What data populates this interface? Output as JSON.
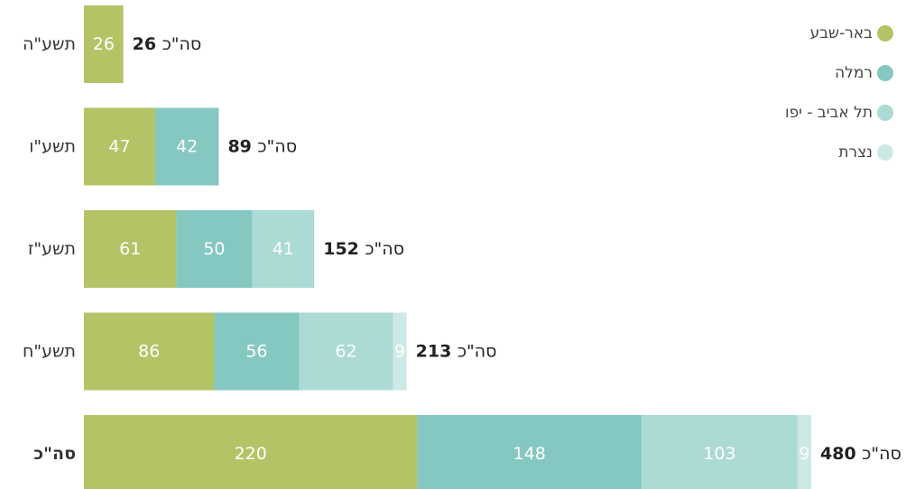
{
  "chart_data": {
    "type": "bar",
    "orientation": "horizontal",
    "stacked": true,
    "direction": "rtl",
    "categories": [
      "תשע\"ה",
      "תשע\"ו",
      "תשע\"ז",
      "תשע\"ח",
      "סה\"כ"
    ],
    "emphasized_categories": [
      "סה\"כ"
    ],
    "series": [
      {
        "name": "באר-שבע",
        "color": "#b3c466",
        "values": [
          26,
          47,
          61,
          86,
          220
        ]
      },
      {
        "name": "רמלה",
        "color": "#85c8c1",
        "values": [
          null,
          42,
          50,
          56,
          148
        ]
      },
      {
        "name": "תל אביב - יפו",
        "color": "#acdad5",
        "values": [
          null,
          null,
          41,
          62,
          103
        ]
      },
      {
        "name": "נצרת",
        "color": "#cde9e5",
        "values": [
          null,
          null,
          null,
          9,
          9
        ]
      }
    ],
    "totals": [
      26,
      89,
      152,
      213,
      480
    ],
    "total_prefix": "סה\"כ",
    "legend_position": "top-right",
    "grid": false
  }
}
